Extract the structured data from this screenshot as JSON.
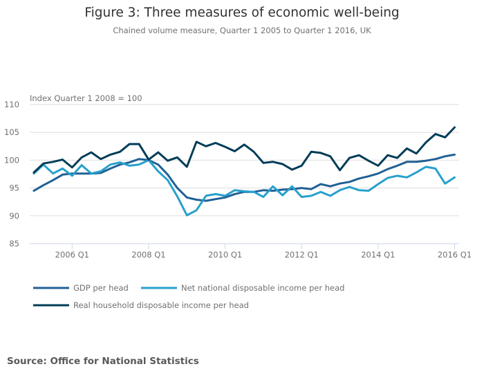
{
  "chart_data": {
    "type": "line",
    "title": "Figure 3: Three measures of economic well-being",
    "subtitle": "Chained volume measure, Quarter 1 2005 to Quarter 1 2016, UK",
    "ylabel": "Index Quarter 1 2008 = 100",
    "xlabel": "",
    "ylim": [
      85,
      110
    ],
    "yticks": [
      85,
      90,
      95,
      100,
      105,
      110
    ],
    "grid": true,
    "legend_position": "bottom-left",
    "x": [
      "2005 Q1",
      "2005 Q2",
      "2005 Q3",
      "2005 Q4",
      "2006 Q1",
      "2006 Q2",
      "2006 Q3",
      "2006 Q4",
      "2007 Q1",
      "2007 Q2",
      "2007 Q3",
      "2007 Q4",
      "2008 Q1",
      "2008 Q2",
      "2008 Q3",
      "2008 Q4",
      "2009 Q1",
      "2009 Q2",
      "2009 Q3",
      "2009 Q4",
      "2010 Q1",
      "2010 Q2",
      "2010 Q3",
      "2010 Q4",
      "2011 Q1",
      "2011 Q2",
      "2011 Q3",
      "2011 Q4",
      "2012 Q1",
      "2012 Q2",
      "2012 Q3",
      "2012 Q4",
      "2013 Q1",
      "2013 Q2",
      "2013 Q3",
      "2013 Q4",
      "2014 Q1",
      "2014 Q2",
      "2014 Q3",
      "2014 Q4",
      "2015 Q1",
      "2015 Q2",
      "2015 Q3",
      "2015 Q4",
      "2016 Q1"
    ],
    "xtick_labels": [
      "2006 Q1",
      "2008 Q1",
      "2010 Q1",
      "2012 Q1",
      "2014 Q1",
      "2016 Q1"
    ],
    "series": [
      {
        "name": "GDP per head",
        "color": "#206095",
        "values": [
          94.5,
          95.5,
          96.4,
          97.4,
          97.6,
          97.6,
          97.6,
          97.7,
          98.5,
          99.2,
          99.6,
          100.2,
          100.0,
          99.2,
          97.4,
          95.0,
          93.3,
          92.9,
          92.7,
          93.0,
          93.3,
          93.9,
          94.3,
          94.3,
          94.6,
          94.5,
          94.7,
          94.8,
          95.0,
          94.8,
          95.7,
          95.3,
          95.8,
          96.1,
          96.7,
          97.1,
          97.6,
          98.4,
          99.0,
          99.7,
          99.7,
          99.9,
          100.2,
          100.7,
          101.0
        ]
      },
      {
        "name": "Net national disposable income per head",
        "color": "#27a0cc",
        "values": [
          97.6,
          99.2,
          97.6,
          98.5,
          97.2,
          99.1,
          97.6,
          98.0,
          99.2,
          99.6,
          99.0,
          99.2,
          100.0,
          98.0,
          96.4,
          93.5,
          90.1,
          91.0,
          93.6,
          93.9,
          93.6,
          94.6,
          94.4,
          94.3,
          93.4,
          95.3,
          93.7,
          95.3,
          93.4,
          93.6,
          94.3,
          93.6,
          94.6,
          95.2,
          94.6,
          94.5,
          95.7,
          96.8,
          97.2,
          96.9,
          97.8,
          98.8,
          98.5,
          95.8,
          96.9
        ]
      },
      {
        "name": "Real household disposable income per head",
        "color": "#003c57",
        "values": [
          97.8,
          99.4,
          99.7,
          100.1,
          98.7,
          100.5,
          101.4,
          100.2,
          101.0,
          101.5,
          102.9,
          102.9,
          100.1,
          101.4,
          99.9,
          100.5,
          98.8,
          103.3,
          102.5,
          103.1,
          102.4,
          101.6,
          102.8,
          101.5,
          99.5,
          99.7,
          99.3,
          98.3,
          99.0,
          101.5,
          101.3,
          100.7,
          98.2,
          100.4,
          100.9,
          99.9,
          99.0,
          100.9,
          100.4,
          102.1,
          101.2,
          103.2,
          104.7,
          104.1,
          105.9
        ]
      }
    ]
  },
  "legend": {
    "items": [
      {
        "label": "GDP per head",
        "color": "#206095"
      },
      {
        "label": "Net national disposable income per head",
        "color": "#27a0cc"
      },
      {
        "label": "Real household disposable income per head",
        "color": "#003c57"
      }
    ]
  },
  "source": "Source: Office for National Statistics"
}
